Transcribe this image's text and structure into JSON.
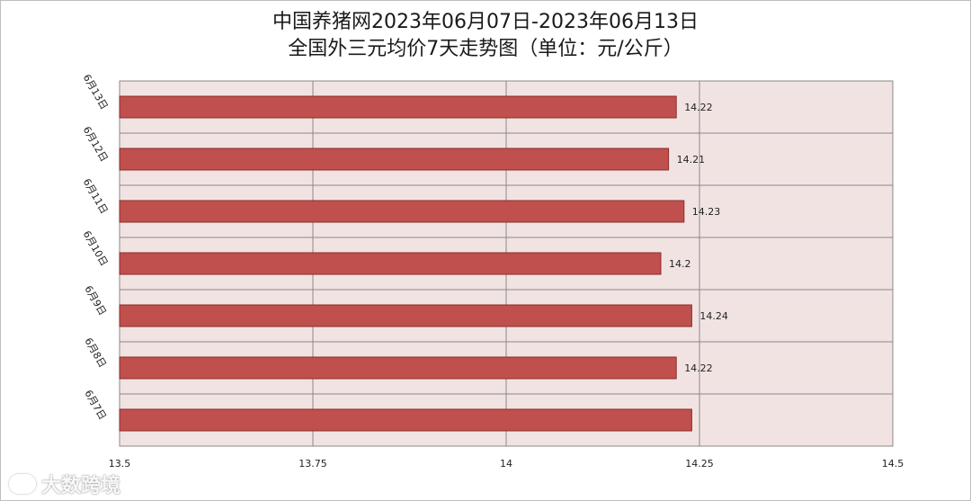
{
  "title": {
    "line1": "中国养猪网2023年06月07日-2023年06月13日",
    "line2": "全国外三元均价7天走势图（单位：元/公斤）"
  },
  "colors": {
    "bar": "#c0504d",
    "bar_border": "#8c2d2a",
    "plot_bg": "#f2e3e3",
    "grid": "#888888"
  },
  "chart_data": {
    "type": "bar",
    "orientation": "horizontal",
    "categories": [
      "6月13日",
      "6月12日",
      "6月11日",
      "6月10日",
      "6月9日",
      "6月8日",
      "6月7日"
    ],
    "values": [
      14.22,
      14.21,
      14.23,
      14.2,
      14.24,
      14.22,
      14.24
    ],
    "data_labels": [
      "14.22",
      "14.21",
      "14.23",
      "14.2",
      "14.24",
      "14.22",
      ""
    ],
    "xlim": [
      13.5,
      14.5
    ],
    "xticks": [
      "13.5",
      "13.75",
      "14",
      "14.25",
      "14.5"
    ],
    "xtick_values": [
      13.5,
      13.75,
      14,
      14.25,
      14.5
    ],
    "grid": true,
    "legend": "none"
  },
  "watermark": {
    "text": "大数跨境",
    "icon": "logo-icon"
  }
}
